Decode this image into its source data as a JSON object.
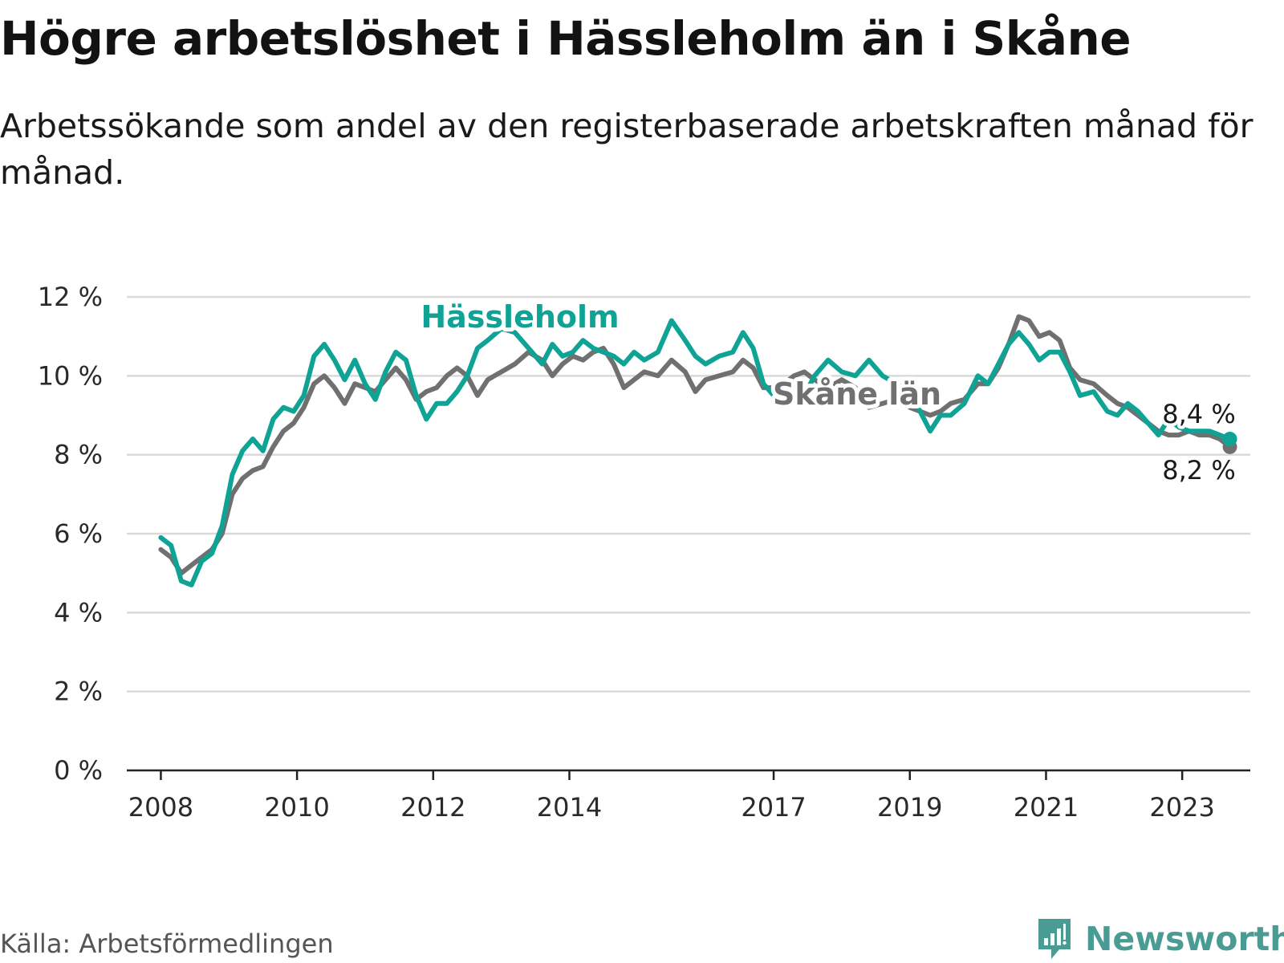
{
  "title": "Högre arbetslöshet i Hässleholm än i Skåne",
  "subtitle": "Arbetssökande som andel av den registerbaserade arbetskraften månad för månad.",
  "source": "Källa: Arbetsförmedlingen",
  "brand": {
    "name": "Newsworthy",
    "icon": "newsworthy-logo-icon",
    "color": "#4a9b94"
  },
  "colors": {
    "hassleholm": "#0fa396",
    "skane": "#707070",
    "grid": "#d9d9d9",
    "axis": "#222222"
  },
  "chart_data": {
    "type": "line",
    "title": "Högre arbetslöshet i Hässleholm än i Skåne",
    "xlabel": "",
    "ylabel": "",
    "xlim": [
      2007.5,
      2024.0
    ],
    "ylim": [
      0,
      12
    ],
    "y_ticks": [
      0,
      2,
      4,
      6,
      8,
      10,
      12
    ],
    "y_tick_labels": [
      "0 %",
      "2 %",
      "4 %",
      "6 %",
      "8 %",
      "10 %",
      "12 %"
    ],
    "x_ticks": [
      2008,
      2010,
      2012,
      2014,
      2017,
      2019,
      2021,
      2023
    ],
    "x_tick_labels": [
      "2008",
      "2010",
      "2012",
      "2014",
      "2017",
      "2019",
      "2021",
      "2023"
    ],
    "grid": true,
    "series": [
      {
        "name": "Skåne län",
        "label": "Skåne län",
        "color": "#707070",
        "end_label": "8,2 %",
        "points": [
          [
            2008.0,
            5.6
          ],
          [
            2008.15,
            5.4
          ],
          [
            2008.3,
            5.0
          ],
          [
            2008.45,
            5.2
          ],
          [
            2008.6,
            5.4
          ],
          [
            2008.75,
            5.6
          ],
          [
            2008.9,
            6.0
          ],
          [
            2009.05,
            7.0
          ],
          [
            2009.2,
            7.4
          ],
          [
            2009.35,
            7.6
          ],
          [
            2009.5,
            7.7
          ],
          [
            2009.65,
            8.2
          ],
          [
            2009.8,
            8.6
          ],
          [
            2009.95,
            8.8
          ],
          [
            2010.1,
            9.2
          ],
          [
            2010.25,
            9.8
          ],
          [
            2010.4,
            10.0
          ],
          [
            2010.55,
            9.7
          ],
          [
            2010.7,
            9.3
          ],
          [
            2010.85,
            9.8
          ],
          [
            2011.0,
            9.7
          ],
          [
            2011.15,
            9.6
          ],
          [
            2011.3,
            9.9
          ],
          [
            2011.45,
            10.2
          ],
          [
            2011.6,
            9.9
          ],
          [
            2011.75,
            9.4
          ],
          [
            2011.9,
            9.6
          ],
          [
            2012.05,
            9.7
          ],
          [
            2012.2,
            10.0
          ],
          [
            2012.35,
            10.2
          ],
          [
            2012.5,
            10.0
          ],
          [
            2012.65,
            9.5
          ],
          [
            2012.8,
            9.9
          ],
          [
            2013.0,
            10.1
          ],
          [
            2013.2,
            10.3
          ],
          [
            2013.4,
            10.6
          ],
          [
            2013.6,
            10.4
          ],
          [
            2013.75,
            10.0
          ],
          [
            2013.9,
            10.3
          ],
          [
            2014.05,
            10.5
          ],
          [
            2014.2,
            10.4
          ],
          [
            2014.35,
            10.6
          ],
          [
            2014.5,
            10.7
          ],
          [
            2014.65,
            10.3
          ],
          [
            2014.8,
            9.7
          ],
          [
            2014.95,
            9.9
          ],
          [
            2015.1,
            10.1
          ],
          [
            2015.3,
            10.0
          ],
          [
            2015.5,
            10.4
          ],
          [
            2015.7,
            10.1
          ],
          [
            2015.85,
            9.6
          ],
          [
            2016.0,
            9.9
          ],
          [
            2016.2,
            10.0
          ],
          [
            2016.4,
            10.1
          ],
          [
            2016.55,
            10.4
          ],
          [
            2016.7,
            10.2
          ],
          [
            2016.85,
            9.7
          ],
          [
            2017.0,
            9.7
          ],
          [
            2017.15,
            9.8
          ],
          [
            2017.3,
            10.0
          ],
          [
            2017.45,
            10.1
          ],
          [
            2017.6,
            9.9
          ],
          [
            2017.8,
            9.7
          ],
          [
            2018.0,
            9.9
          ],
          [
            2018.2,
            9.7
          ],
          [
            2018.4,
            9.2
          ],
          [
            2018.6,
            9.3
          ],
          [
            2018.8,
            9.4
          ],
          [
            2019.0,
            9.2
          ],
          [
            2019.15,
            9.1
          ],
          [
            2019.3,
            9.0
          ],
          [
            2019.45,
            9.1
          ],
          [
            2019.6,
            9.3
          ],
          [
            2019.8,
            9.4
          ],
          [
            2020.0,
            9.8
          ],
          [
            2020.15,
            9.8
          ],
          [
            2020.3,
            10.2
          ],
          [
            2020.45,
            10.8
          ],
          [
            2020.6,
            11.5
          ],
          [
            2020.75,
            11.4
          ],
          [
            2020.9,
            11.0
          ],
          [
            2021.05,
            11.1
          ],
          [
            2021.2,
            10.9
          ],
          [
            2021.35,
            10.2
          ],
          [
            2021.5,
            9.9
          ],
          [
            2021.7,
            9.8
          ],
          [
            2021.9,
            9.5
          ],
          [
            2022.05,
            9.3
          ],
          [
            2022.2,
            9.2
          ],
          [
            2022.35,
            9.0
          ],
          [
            2022.5,
            8.8
          ],
          [
            2022.65,
            8.6
          ],
          [
            2022.8,
            8.5
          ],
          [
            2022.95,
            8.5
          ],
          [
            2023.1,
            8.6
          ],
          [
            2023.25,
            8.5
          ],
          [
            2023.4,
            8.5
          ],
          [
            2023.55,
            8.4
          ],
          [
            2023.7,
            8.2
          ]
        ]
      },
      {
        "name": "Hässleholm",
        "label": "Hässleholm",
        "color": "#0fa396",
        "end_label": "8,4 %",
        "points": [
          [
            2008.0,
            5.9
          ],
          [
            2008.15,
            5.7
          ],
          [
            2008.3,
            4.8
          ],
          [
            2008.45,
            4.7
          ],
          [
            2008.6,
            5.3
          ],
          [
            2008.75,
            5.5
          ],
          [
            2008.9,
            6.2
          ],
          [
            2009.05,
            7.5
          ],
          [
            2009.2,
            8.1
          ],
          [
            2009.35,
            8.4
          ],
          [
            2009.5,
            8.1
          ],
          [
            2009.65,
            8.9
          ],
          [
            2009.8,
            9.2
          ],
          [
            2009.95,
            9.1
          ],
          [
            2010.1,
            9.5
          ],
          [
            2010.25,
            10.5
          ],
          [
            2010.4,
            10.8
          ],
          [
            2010.55,
            10.4
          ],
          [
            2010.7,
            9.9
          ],
          [
            2010.85,
            10.4
          ],
          [
            2011.0,
            9.8
          ],
          [
            2011.15,
            9.4
          ],
          [
            2011.3,
            10.1
          ],
          [
            2011.45,
            10.6
          ],
          [
            2011.6,
            10.4
          ],
          [
            2011.75,
            9.5
          ],
          [
            2011.9,
            8.9
          ],
          [
            2012.05,
            9.3
          ],
          [
            2012.2,
            9.3
          ],
          [
            2012.35,
            9.6
          ],
          [
            2012.5,
            10.0
          ],
          [
            2012.65,
            10.7
          ],
          [
            2012.8,
            10.9
          ],
          [
            2013.0,
            11.2
          ],
          [
            2013.2,
            11.1
          ],
          [
            2013.4,
            10.7
          ],
          [
            2013.6,
            10.3
          ],
          [
            2013.75,
            10.8
          ],
          [
            2013.9,
            10.5
          ],
          [
            2014.05,
            10.6
          ],
          [
            2014.2,
            10.9
          ],
          [
            2014.35,
            10.7
          ],
          [
            2014.5,
            10.6
          ],
          [
            2014.65,
            10.5
          ],
          [
            2014.8,
            10.3
          ],
          [
            2014.95,
            10.6
          ],
          [
            2015.1,
            10.4
          ],
          [
            2015.3,
            10.6
          ],
          [
            2015.5,
            11.4
          ],
          [
            2015.7,
            10.9
          ],
          [
            2015.85,
            10.5
          ],
          [
            2016.0,
            10.3
          ],
          [
            2016.2,
            10.5
          ],
          [
            2016.4,
            10.6
          ],
          [
            2016.55,
            11.1
          ],
          [
            2016.7,
            10.7
          ],
          [
            2016.85,
            9.8
          ],
          [
            2017.0,
            9.5
          ],
          [
            2017.15,
            9.6
          ],
          [
            2017.3,
            9.7
          ],
          [
            2017.45,
            9.5
          ],
          [
            2017.6,
            10.0
          ],
          [
            2017.8,
            10.4
          ],
          [
            2018.0,
            10.1
          ],
          [
            2018.2,
            10.0
          ],
          [
            2018.4,
            10.4
          ],
          [
            2018.6,
            10.0
          ],
          [
            2018.8,
            9.8
          ],
          [
            2019.0,
            9.6
          ],
          [
            2019.15,
            9.1
          ],
          [
            2019.3,
            8.6
          ],
          [
            2019.45,
            9.0
          ],
          [
            2019.6,
            9.0
          ],
          [
            2019.8,
            9.3
          ],
          [
            2020.0,
            10.0
          ],
          [
            2020.15,
            9.8
          ],
          [
            2020.3,
            10.3
          ],
          [
            2020.45,
            10.8
          ],
          [
            2020.6,
            11.1
          ],
          [
            2020.75,
            10.8
          ],
          [
            2020.9,
            10.4
          ],
          [
            2021.05,
            10.6
          ],
          [
            2021.2,
            10.6
          ],
          [
            2021.35,
            10.1
          ],
          [
            2021.5,
            9.5
          ],
          [
            2021.7,
            9.6
          ],
          [
            2021.9,
            9.1
          ],
          [
            2022.05,
            9.0
          ],
          [
            2022.2,
            9.3
          ],
          [
            2022.35,
            9.1
          ],
          [
            2022.5,
            8.8
          ],
          [
            2022.65,
            8.5
          ],
          [
            2022.8,
            8.9
          ],
          [
            2022.95,
            8.7
          ],
          [
            2023.1,
            8.6
          ],
          [
            2023.25,
            8.6
          ],
          [
            2023.4,
            8.6
          ],
          [
            2023.55,
            8.5
          ],
          [
            2023.7,
            8.4
          ]
        ]
      }
    ]
  }
}
